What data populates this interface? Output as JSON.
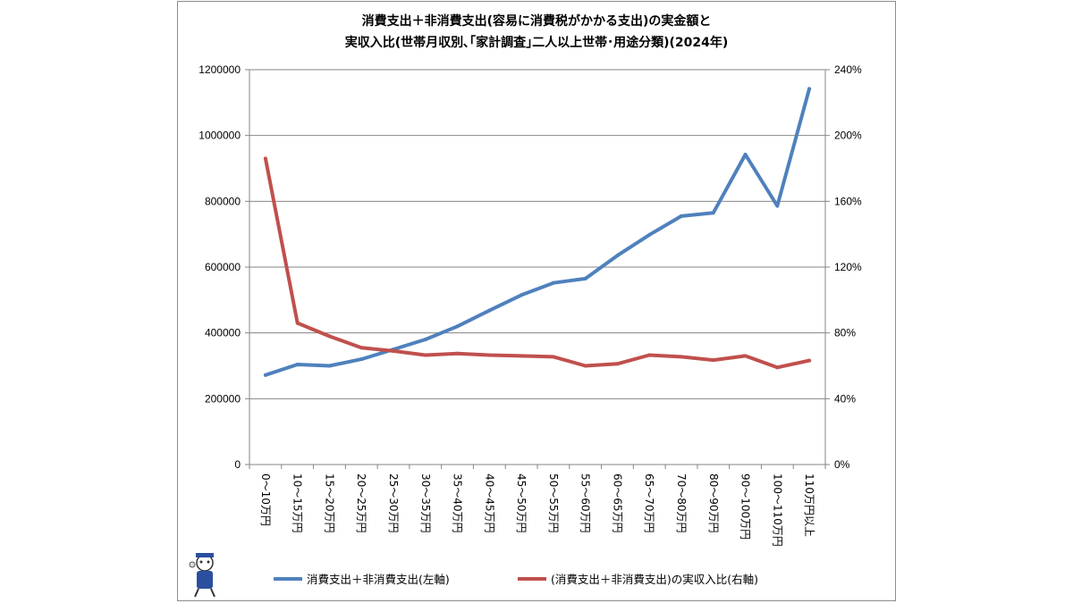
{
  "chart_data": {
    "type": "line",
    "title": [
      "消費支出＋非消費支出(容易に消費税がかかる支出)の実金額と",
      "実収入比(世帯月収別､｢家計調査｣二人以上世帯･用途分類)(2024年)"
    ],
    "categories": [
      "0～10万円",
      "10～15万円",
      "15～20万円",
      "20～25万円",
      "25～30万円",
      "30～35万円",
      "35～40万円",
      "40～45万円",
      "45～50万円",
      "50～55万円",
      "55～60万円",
      "60～65万円",
      "65～70万円",
      "70～80万円",
      "80～90万円",
      "90～100万円",
      "100～110万円",
      "110万円以上"
    ],
    "y_left": {
      "ylim": [
        0,
        1200000
      ],
      "ticks": [
        "0",
        "200000",
        "400000",
        "600000",
        "800000",
        "1000000",
        "1200000"
      ]
    },
    "y_right": {
      "ylim": [
        0,
        2.4
      ],
      "ticks": [
        "0%",
        "40%",
        "80%",
        "120%",
        "160%",
        "200%",
        "240%"
      ]
    },
    "grid": true,
    "legend_position": "bottom",
    "series": [
      {
        "name": "消費支出＋非消費支出(左軸)",
        "axis": "left",
        "color": "#4f81bd",
        "values": [
          272000,
          304000,
          300000,
          320000,
          350000,
          380000,
          420000,
          468000,
          515000,
          552000,
          565000,
          635000,
          698000,
          755000,
          765000,
          942000,
          786000,
          1142000
        ]
      },
      {
        "name": "(消費支出＋非消費支出)の実収入比(右軸)",
        "axis": "right",
        "color": "#c0504d",
        "values": [
          1.86,
          0.86,
          0.78,
          0.71,
          0.69,
          0.665,
          0.675,
          0.665,
          0.66,
          0.655,
          0.6,
          0.612,
          0.665,
          0.655,
          0.635,
          0.66,
          0.59,
          0.632
        ]
      }
    ]
  }
}
